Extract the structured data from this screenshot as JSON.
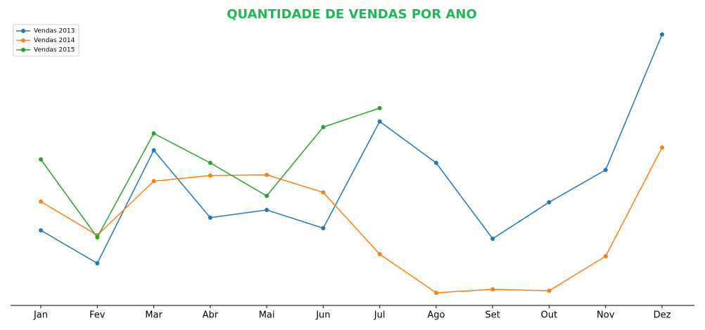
{
  "chart_data": {
    "type": "line",
    "title": "QUANTIDADE DE VENDAS POR ANO",
    "categories": [
      "Jan",
      "Fev",
      "Mar",
      "Abr",
      "Mai",
      "Jun",
      "Jul",
      "Ago",
      "Set",
      "Out",
      "Nov",
      "Dez"
    ],
    "series": [
      {
        "name": "Vendas 2013",
        "color": "#1f77b4",
        "values": [
          107,
          60,
          221,
          125,
          136,
          110,
          262,
          203,
          95,
          147,
          193,
          386
        ]
      },
      {
        "name": "Vendas 2014",
        "color": "#ff7f0e",
        "values": [
          148,
          100,
          177,
          185,
          186,
          161,
          73,
          18,
          23,
          21,
          70,
          225
        ]
      },
      {
        "name": "Vendas 2015",
        "color": "#2ca02c",
        "values": [
          208,
          97,
          245,
          203,
          156,
          254,
          281,
          null,
          null,
          null,
          null,
          null
        ]
      }
    ],
    "ylim": [
      0,
      400
    ],
    "legend": "upper left",
    "title_color": "#1db954"
  }
}
